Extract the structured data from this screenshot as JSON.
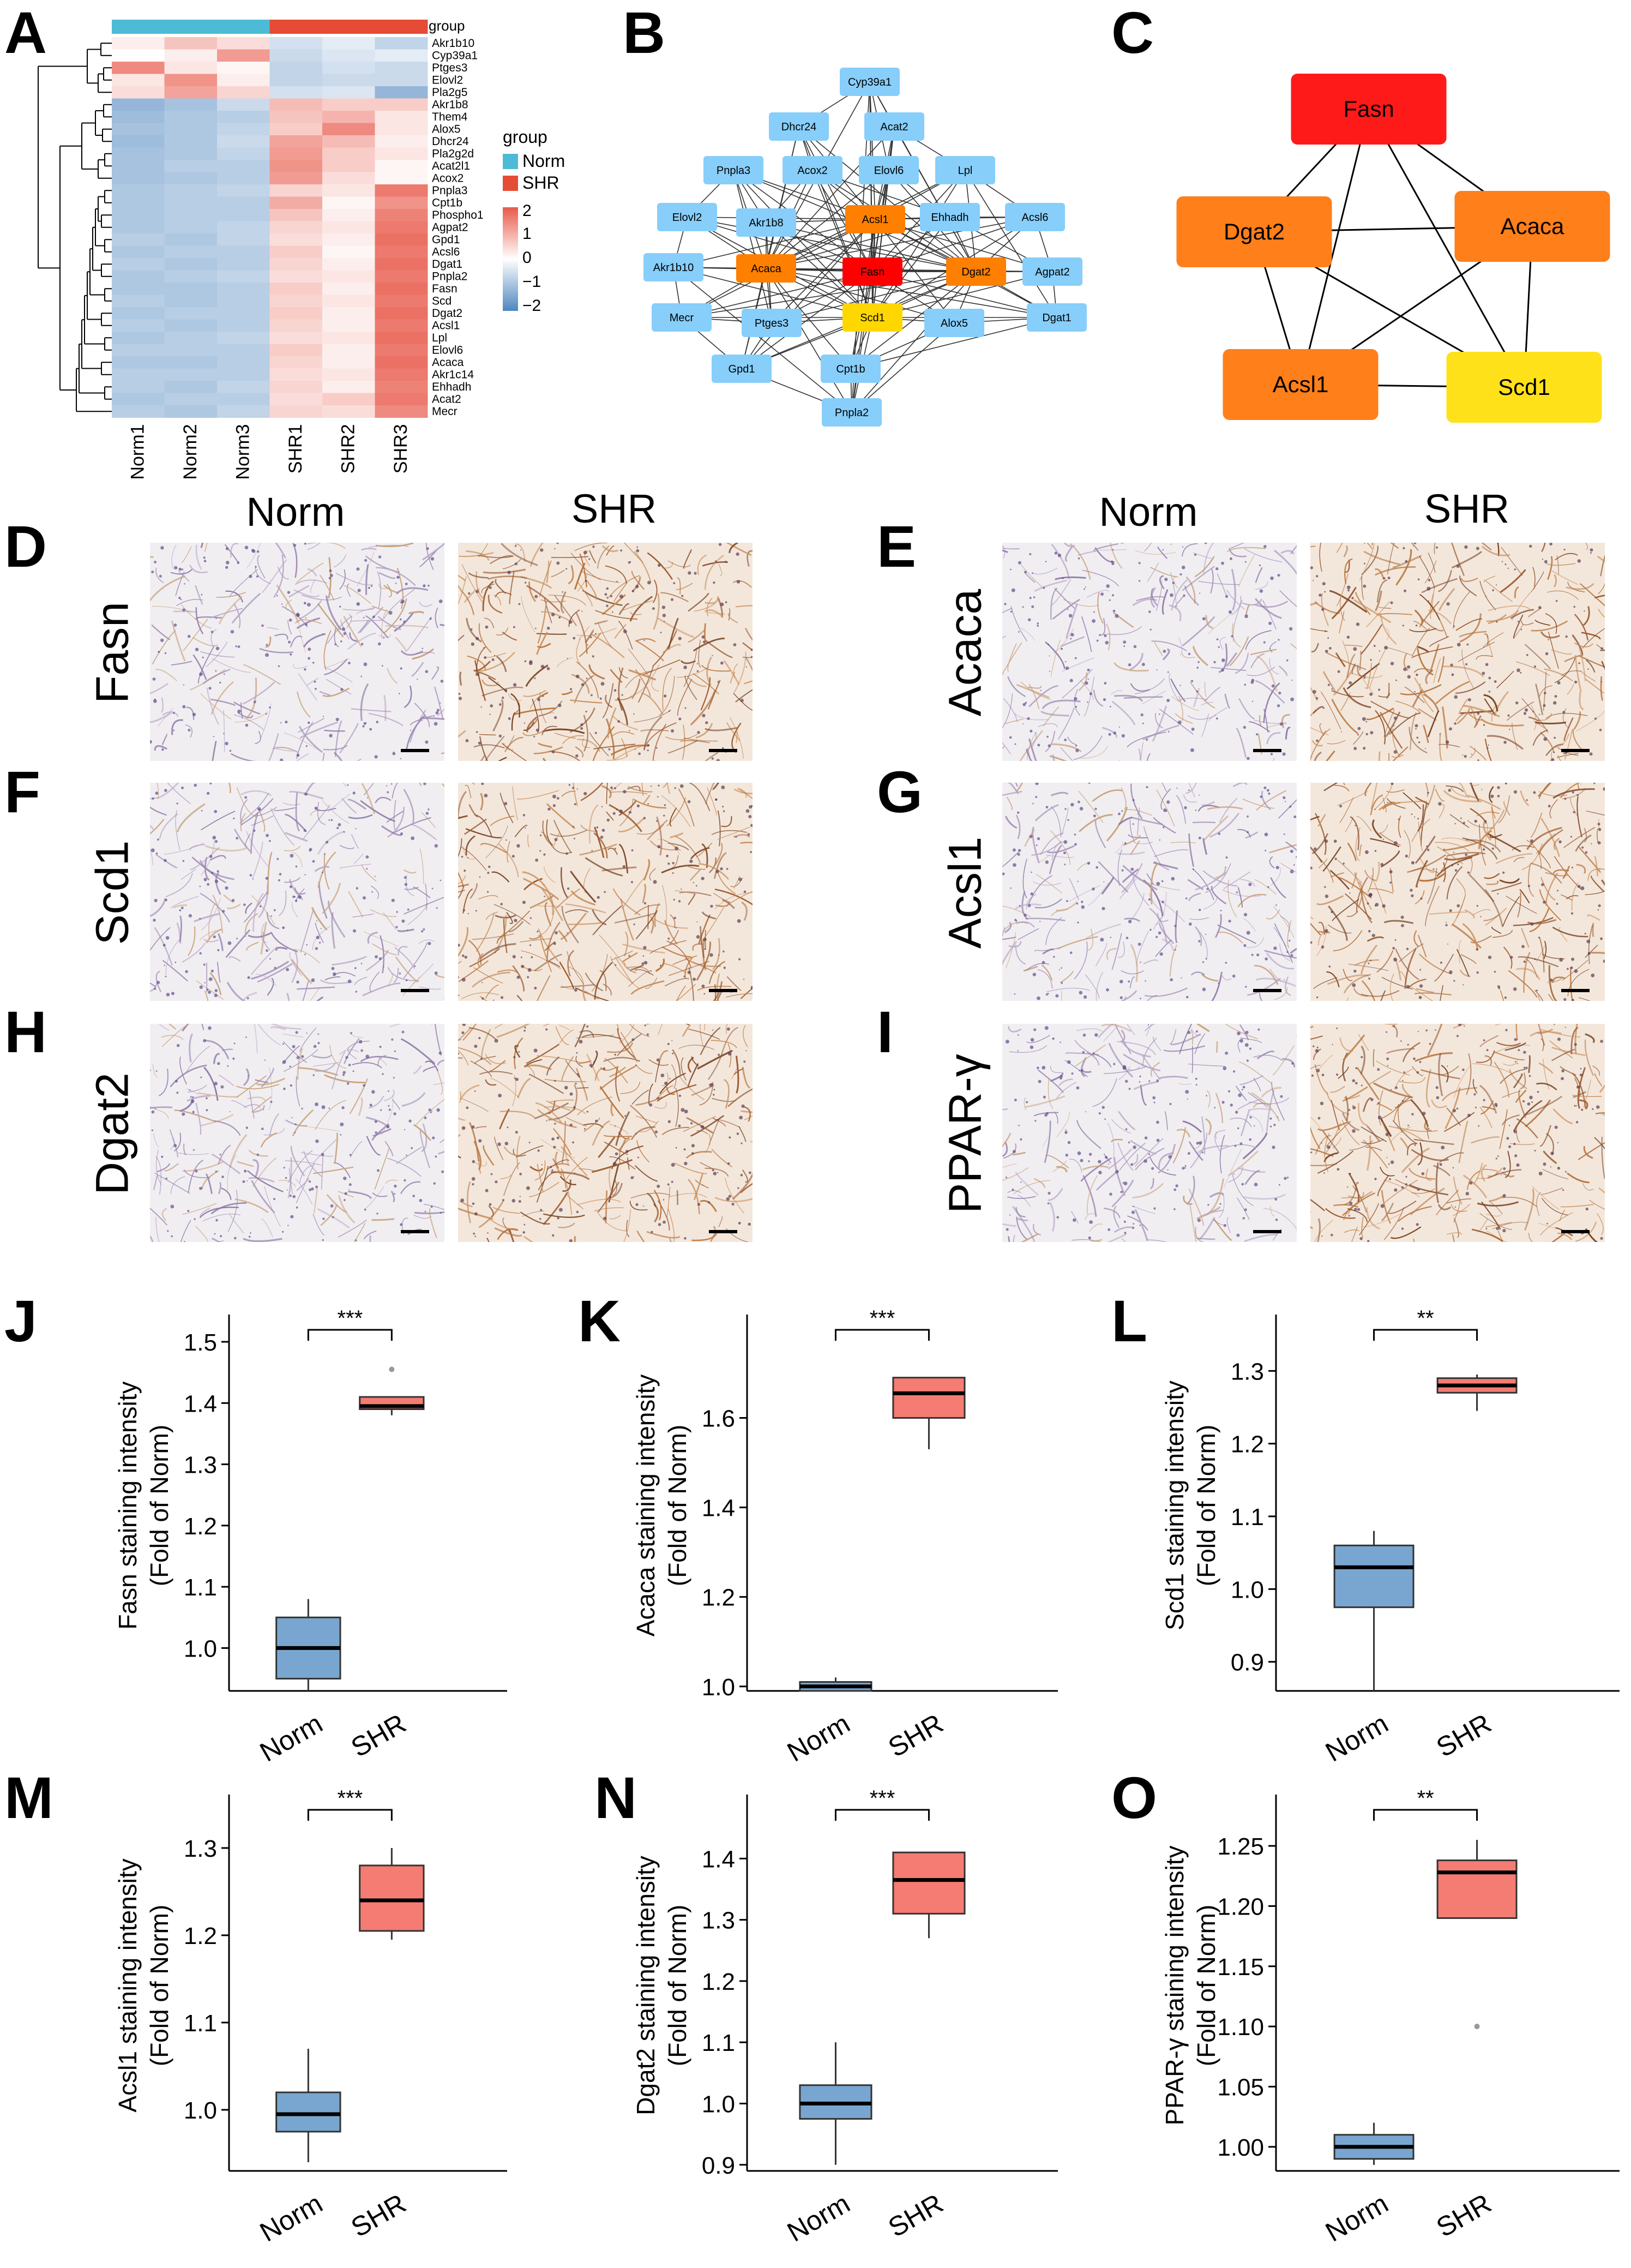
{
  "panel_letters": [
    "A",
    "B",
    "C",
    "D",
    "E",
    "F",
    "G",
    "H",
    "I",
    "J",
    "K",
    "L",
    "M",
    "N",
    "O"
  ],
  "heatmap": {
    "rows": [
      "Akr1b10",
      "Cyp39a1",
      "Ptges3",
      "Elovl2",
      "Pla2g5",
      "Akr1b8",
      "Them4",
      "Alox5",
      "Dhcr24",
      "Pla2g2d",
      "Acat2l1",
      "Acox2",
      "Pnpla3",
      "Cpt1b",
      "Phospho1",
      "Agpat2",
      "Gpd1",
      "Acsl6",
      "Dgat1",
      "Pnpla2",
      "Fasn",
      "Scd",
      "Dgat2",
      "Acsl1",
      "Lpl",
      "Elovl6",
      "Acaca",
      "Akr1c14",
      "Ehhadh",
      "Acat2",
      "Mecr"
    ],
    "columns": [
      "Norm1",
      "Norm2",
      "Norm3",
      "SHR1",
      "SHR2",
      "SHR3"
    ],
    "group_label": "group",
    "legend_title": "group",
    "legend_items": [
      {
        "label": "Norm",
        "color": "#4dbbd5"
      },
      {
        "label": "SHR",
        "color": "#e64b35"
      }
    ],
    "scale_ticks": [
      "2",
      "1",
      "0",
      "−1",
      "−2"
    ],
    "values": [
      [
        0.2,
        0.7,
        0.4,
        -0.5,
        -0.3,
        -0.7
      ],
      [
        0.0,
        0.2,
        1.2,
        -0.6,
        -0.4,
        -0.3
      ],
      [
        1.4,
        0.3,
        0.1,
        -0.7,
        -0.5,
        -0.6
      ],
      [
        0.3,
        1.3,
        0.2,
        -0.7,
        -0.6,
        -0.6
      ],
      [
        0.4,
        1.1,
        0.5,
        -0.5,
        -0.4,
        -1.2
      ],
      [
        -1.2,
        -1.0,
        -0.6,
        0.8,
        0.6,
        0.6
      ],
      [
        -1.1,
        -0.9,
        -0.8,
        0.7,
        0.9,
        0.3
      ],
      [
        -1.0,
        -0.9,
        -0.7,
        0.6,
        1.4,
        0.3
      ],
      [
        -1.1,
        -0.9,
        -0.6,
        1.1,
        0.8,
        0.2
      ],
      [
        -1.0,
        -0.9,
        -0.7,
        1.2,
        0.6,
        0.3
      ],
      [
        -1.0,
        -0.8,
        -0.8,
        1.3,
        0.6,
        0.1
      ],
      [
        -1.0,
        -0.9,
        -0.8,
        1.2,
        0.4,
        0.1
      ],
      [
        -0.9,
        -0.8,
        -0.7,
        0.5,
        0.3,
        1.6
      ],
      [
        -0.9,
        -0.8,
        -0.8,
        1.0,
        0.1,
        1.3
      ],
      [
        -0.9,
        -0.8,
        -0.8,
        0.7,
        0.2,
        1.5
      ],
      [
        -0.9,
        -0.8,
        -0.7,
        0.5,
        0.3,
        1.6
      ],
      [
        -0.8,
        -0.9,
        -0.7,
        0.4,
        0.2,
        1.7
      ],
      [
        -0.9,
        -0.8,
        -0.8,
        0.6,
        0.1,
        1.6
      ],
      [
        -0.8,
        -0.9,
        -0.8,
        0.5,
        0.2,
        1.7
      ],
      [
        -0.9,
        -0.8,
        -0.7,
        0.4,
        0.3,
        1.6
      ],
      [
        -0.9,
        -0.9,
        -0.8,
        0.6,
        0.2,
        1.7
      ],
      [
        -0.8,
        -0.9,
        -0.8,
        0.5,
        0.3,
        1.6
      ],
      [
        -0.9,
        -0.8,
        -0.8,
        0.6,
        0.2,
        1.7
      ],
      [
        -0.8,
        -0.9,
        -0.8,
        0.5,
        0.2,
        1.6
      ],
      [
        -0.9,
        -0.8,
        -0.7,
        0.4,
        0.3,
        1.7
      ],
      [
        -0.8,
        -0.8,
        -0.8,
        0.6,
        0.2,
        1.6
      ],
      [
        -0.9,
        -0.9,
        -0.8,
        0.5,
        0.2,
        1.7
      ],
      [
        -0.8,
        -0.8,
        -0.8,
        0.4,
        0.3,
        1.6
      ],
      [
        -0.8,
        -0.9,
        -0.7,
        0.5,
        0.2,
        1.5
      ],
      [
        -0.9,
        -0.8,
        -0.8,
        0.4,
        0.6,
        1.6
      ],
      [
        -0.8,
        -0.9,
        -0.7,
        0.5,
        0.4,
        1.4
      ]
    ]
  },
  "network_b": {
    "nodes": [
      {
        "label": "Cyp39a1",
        "color": "#87cefa"
      },
      {
        "label": "Dhcr24",
        "color": "#87cefa"
      },
      {
        "label": "Acat2",
        "color": "#87cefa"
      },
      {
        "label": "Pnpla3",
        "color": "#87cefa"
      },
      {
        "label": "Acox2",
        "color": "#87cefa"
      },
      {
        "label": "Elovl6",
        "color": "#87cefa"
      },
      {
        "label": "Lpl",
        "color": "#87cefa"
      },
      {
        "label": "Elovl2",
        "color": "#87cefa"
      },
      {
        "label": "Akr1b8",
        "color": "#87cefa"
      },
      {
        "label": "Acsl1",
        "color": "#ff7f00"
      },
      {
        "label": "Ehhadh",
        "color": "#87cefa"
      },
      {
        "label": "Acsl6",
        "color": "#87cefa"
      },
      {
        "label": "Akr1b10",
        "color": "#87cefa"
      },
      {
        "label": "Acaca",
        "color": "#ff7f00"
      },
      {
        "label": "Fasn",
        "color": "#ff0000"
      },
      {
        "label": "Dgat2",
        "color": "#ff7f00"
      },
      {
        "label": "Agpat2",
        "color": "#87cefa"
      },
      {
        "label": "Mecr",
        "color": "#87cefa"
      },
      {
        "label": "Ptges3",
        "color": "#87cefa"
      },
      {
        "label": "Scd1",
        "color": "#ffd700"
      },
      {
        "label": "Alox5",
        "color": "#87cefa"
      },
      {
        "label": "Dgat1",
        "color": "#87cefa"
      },
      {
        "label": "Gpd1",
        "color": "#87cefa"
      },
      {
        "label": "Cpt1b",
        "color": "#87cefa"
      },
      {
        "label": "Pnpla2",
        "color": "#87cefa"
      }
    ]
  },
  "network_c": {
    "nodes": [
      {
        "label": "Fasn",
        "color": "#ff1a1a"
      },
      {
        "label": "Dgat2",
        "color": "#ff7f1a"
      },
      {
        "label": "Acaca",
        "color": "#ff7f1a"
      },
      {
        "label": "Acsl1",
        "color": "#ff7f1a"
      },
      {
        "label": "Scd1",
        "color": "#ffe11a"
      }
    ]
  },
  "ihc": {
    "col_norm": "Norm",
    "col_shr": "SHR",
    "rows": [
      "Fasn",
      "Acaca",
      "Scd1",
      "Acsl1",
      "Dgat2",
      "PPAR-γ"
    ]
  },
  "boxplots": {
    "categories": [
      "Norm",
      "SHR"
    ],
    "norm_color": "#78a6d0",
    "shr_color": "#f47c72",
    "plots": [
      {
        "id": "J",
        "ylabel": "Fasn staining intensity",
        "ylabel2": "(Fold of Norm)",
        "sig": "***",
        "ylim": [
          0.93,
          1.5
        ],
        "ticks": [
          "1.0",
          "1.1",
          "1.2",
          "1.3",
          "1.4",
          "1.5"
        ],
        "tickvals": [
          1.0,
          1.1,
          1.2,
          1.3,
          1.4,
          1.5
        ],
        "norm": {
          "min": 0.93,
          "q1": 0.95,
          "med": 1.0,
          "q3": 1.05,
          "max": 1.08
        },
        "shr": {
          "min": 1.38,
          "q1": 1.39,
          "med": 1.395,
          "q3": 1.41,
          "max": 1.41
        },
        "shr_out": [
          1.455
        ]
      },
      {
        "id": "K",
        "ylabel": "Acaca staining intensity",
        "ylabel2": "(Fold of Norm)",
        "sig": "***",
        "ylim": [
          0.99,
          1.77
        ],
        "ticks": [
          "1.0",
          "1.2",
          "1.4",
          "1.6"
        ],
        "tickvals": [
          1.0,
          1.2,
          1.4,
          1.6
        ],
        "norm": {
          "min": 0.99,
          "q1": 0.99,
          "med": 1.0,
          "q3": 1.01,
          "max": 1.02
        },
        "shr": {
          "min": 1.53,
          "q1": 1.6,
          "med": 1.655,
          "q3": 1.69,
          "max": 1.69
        },
        "shr_out": []
      },
      {
        "id": "L",
        "ylabel": "Scd1 staining intensity",
        "ylabel2": "(Fold of Norm)",
        "sig": "**",
        "ylim": [
          0.86,
          1.34
        ],
        "ticks": [
          "0.9",
          "1.0",
          "1.1",
          "1.2",
          "1.3"
        ],
        "tickvals": [
          0.9,
          1.0,
          1.1,
          1.2,
          1.3
        ],
        "norm": {
          "min": 0.86,
          "q1": 0.975,
          "med": 1.03,
          "q3": 1.06,
          "max": 1.08
        },
        "shr": {
          "min": 1.245,
          "q1": 1.27,
          "med": 1.28,
          "q3": 1.29,
          "max": 1.295
        },
        "shr_out": []
      },
      {
        "id": "M",
        "ylabel": "Acsl1 staining intensity",
        "ylabel2": "(Fold of Norm)",
        "sig": "***",
        "ylim": [
          0.93,
          1.33
        ],
        "ticks": [
          "1.0",
          "1.1",
          "1.2",
          "1.3"
        ],
        "tickvals": [
          1.0,
          1.1,
          1.2,
          1.3
        ],
        "norm": {
          "min": 0.94,
          "q1": 0.975,
          "med": 0.995,
          "q3": 1.02,
          "max": 1.07
        },
        "shr": {
          "min": 1.195,
          "q1": 1.205,
          "med": 1.24,
          "q3": 1.28,
          "max": 1.3
        },
        "shr_out": []
      },
      {
        "id": "N",
        "ylabel": "Dgat2 staining intensity",
        "ylabel2": "(Fold of Norm)",
        "sig": "***",
        "ylim": [
          0.89,
          1.46
        ],
        "ticks": [
          "0.9",
          "1.0",
          "1.1",
          "1.2",
          "1.3",
          "1.4"
        ],
        "tickvals": [
          0.9,
          1.0,
          1.1,
          1.2,
          1.3,
          1.4
        ],
        "norm": {
          "min": 0.9,
          "q1": 0.975,
          "med": 1.0,
          "q3": 1.03,
          "max": 1.1
        },
        "shr": {
          "min": 1.27,
          "q1": 1.31,
          "med": 1.365,
          "q3": 1.41,
          "max": 1.41
        },
        "shr_out": []
      },
      {
        "id": "O",
        "ylabel": "PPAR-γ staining intensity",
        "ylabel2": "(Fold of Norm)",
        "sig": "**",
        "ylim": [
          0.98,
          1.27
        ],
        "ticks": [
          "1.00",
          "1.05",
          "1.10",
          "1.15",
          "1.20",
          "1.25"
        ],
        "tickvals": [
          1.0,
          1.05,
          1.1,
          1.15,
          1.2,
          1.25
        ],
        "norm": {
          "min": 0.985,
          "q1": 0.99,
          "med": 1.0,
          "q3": 1.01,
          "max": 1.02
        },
        "shr": {
          "min": 1.19,
          "q1": 1.19,
          "med": 1.228,
          "q3": 1.238,
          "max": 1.255
        },
        "shr_out": [
          1.1
        ]
      }
    ]
  }
}
